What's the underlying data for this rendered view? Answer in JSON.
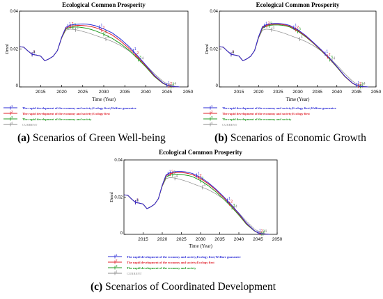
{
  "colors": {
    "series": [
      "#2b2bd6",
      "#e0202a",
      "#1f9a1f",
      "#8a8a8a"
    ],
    "axis": "#000000",
    "grid": "#000000"
  },
  "captions": [
    {
      "letter": "(a)",
      "text": " Scenarios of Green Well-being"
    },
    {
      "letter": "(b)",
      "text": " Scenarios of Economic Growth"
    },
    {
      "letter": "(c)",
      "text": " Scenarios of Coordinated Development"
    }
  ],
  "chart_data": [
    {
      "type": "line",
      "title": "Ecological Common Prosperity",
      "xlabel": "Time (Year)",
      "ylabel": "Dmnl",
      "xlim": [
        2010,
        2050
      ],
      "ylim": [
        0,
        0.04
      ],
      "xticks": [
        "2015",
        "2020",
        "2025",
        "2030",
        "2035",
        "2040",
        "2045",
        "2050"
      ],
      "yticks": [
        "0",
        "0.02",
        "0.04"
      ],
      "series": [
        {
          "name": "The rapid development of the economy and society;Ecology first;Welfare guarantee",
          "marker": "1",
          "x": [
            2010,
            2011,
            2012,
            2013,
            2014,
            2015,
            2016,
            2017,
            2018,
            2019,
            2020,
            2021,
            2022,
            2023,
            2024,
            2025,
            2026,
            2027,
            2028,
            2030,
            2032,
            2034,
            2036,
            2038,
            2040,
            2042,
            2044,
            2045,
            2046,
            2047,
            2048
          ],
          "y": [
            0.0212,
            0.021,
            0.019,
            0.0172,
            0.0168,
            0.0163,
            0.0138,
            0.0148,
            0.0162,
            0.0192,
            0.0262,
            0.0315,
            0.0326,
            0.0329,
            0.0331,
            0.0332,
            0.0331,
            0.0328,
            0.0323,
            0.0306,
            0.0285,
            0.0252,
            0.0213,
            0.0165,
            0.0115,
            0.0062,
            0.0022,
            0.001,
            0.0004,
            0.0001,
            0.0
          ]
        },
        {
          "name": "The rapid development of the economy and society;Ecology first",
          "marker": "2",
          "x": [
            2010,
            2011,
            2012,
            2013,
            2014,
            2015,
            2016,
            2017,
            2018,
            2019,
            2020,
            2021,
            2022,
            2023,
            2024,
            2025,
            2026,
            2027,
            2028,
            2030,
            2032,
            2034,
            2036,
            2038,
            2040,
            2042,
            2044,
            2045,
            2046,
            2047,
            2048
          ],
          "y": [
            0.0212,
            0.021,
            0.019,
            0.0172,
            0.0168,
            0.0163,
            0.0138,
            0.0148,
            0.0162,
            0.0192,
            0.026,
            0.031,
            0.032,
            0.0323,
            0.0325,
            0.0324,
            0.0322,
            0.0318,
            0.0313,
            0.0296,
            0.0274,
            0.0242,
            0.0203,
            0.0158,
            0.011,
            0.0058,
            0.002,
            0.0009,
            0.0003,
            0.0001,
            0.0
          ]
        },
        {
          "name": "The rapid development of the economy and society",
          "marker": "3",
          "x": [
            2010,
            2011,
            2012,
            2013,
            2014,
            2015,
            2016,
            2017,
            2018,
            2019,
            2020,
            2021,
            2022,
            2023,
            2024,
            2025,
            2026,
            2027,
            2028,
            2030,
            2032,
            2034,
            2036,
            2038,
            2040,
            2042,
            2044,
            2045,
            2046,
            2047,
            2048
          ],
          "y": [
            0.0212,
            0.021,
            0.019,
            0.0172,
            0.0168,
            0.0163,
            0.0138,
            0.0148,
            0.0162,
            0.0192,
            0.0258,
            0.0305,
            0.0314,
            0.0316,
            0.0316,
            0.0313,
            0.0309,
            0.0303,
            0.0296,
            0.0278,
            0.0256,
            0.0228,
            0.0193,
            0.015,
            0.0105,
            0.0055,
            0.0019,
            0.0008,
            0.0003,
            0.0001,
            0.0
          ]
        },
        {
          "name": "CURRENT",
          "marker": "4",
          "x": [
            2010,
            2011,
            2012,
            2013,
            2014,
            2015,
            2016,
            2017,
            2018,
            2019,
            2020,
            2021,
            2022,
            2023,
            2024,
            2025,
            2026,
            2027,
            2028,
            2030,
            2032,
            2034,
            2036,
            2038,
            2040,
            2042,
            2044,
            2045,
            2046,
            2047,
            2048
          ],
          "y": [
            0.0212,
            0.021,
            0.019,
            0.0172,
            0.0168,
            0.0163,
            0.0138,
            0.0148,
            0.0162,
            0.0192,
            0.0258,
            0.03,
            0.0305,
            0.0303,
            0.0299,
            0.0293,
            0.0287,
            0.028,
            0.0272,
            0.0257,
            0.024,
            0.0218,
            0.019,
            0.0155,
            0.0115,
            0.007,
            0.003,
            0.0017,
            0.0008,
            0.0003,
            0.0
          ]
        }
      ]
    },
    {
      "type": "line",
      "title": "Ecological Common Prosperity",
      "xlabel": "Time (Year)",
      "ylabel": "Dmnl",
      "xlim": [
        2010,
        2050
      ],
      "ylim": [
        0,
        0.04
      ],
      "xticks": [
        "2015",
        "2020",
        "2025",
        "2030",
        "2035",
        "2040",
        "2045",
        "2050"
      ],
      "yticks": [
        "0",
        "0.02",
        "0.04"
      ],
      "series": [
        {
          "name": "The rapid development of the economy and society;Ecology first;Welfare guarantee",
          "marker": "1",
          "x": [
            2010,
            2011,
            2012,
            2013,
            2014,
            2015,
            2016,
            2017,
            2018,
            2019,
            2020,
            2021,
            2022,
            2023,
            2024,
            2025,
            2026,
            2027,
            2028,
            2030,
            2032,
            2034,
            2036,
            2038,
            2040,
            2042,
            2044,
            2045,
            2046,
            2047,
            2048
          ],
          "y": [
            0.0212,
            0.021,
            0.019,
            0.0172,
            0.0168,
            0.0163,
            0.0138,
            0.0148,
            0.0162,
            0.0192,
            0.0265,
            0.0318,
            0.0328,
            0.0333,
            0.0335,
            0.0335,
            0.0333,
            0.033,
            0.0324,
            0.0302,
            0.0272,
            0.0235,
            0.0196,
            0.0155,
            0.0108,
            0.0058,
            0.002,
            0.0009,
            0.0003,
            0.0001,
            0.0
          ]
        },
        {
          "name": "The rapid development of the economy and society;Ecology first",
          "marker": "2",
          "x": [
            2010,
            2011,
            2012,
            2013,
            2014,
            2015,
            2016,
            2017,
            2018,
            2019,
            2020,
            2021,
            2022,
            2023,
            2024,
            2025,
            2026,
            2027,
            2028,
            2030,
            2032,
            2034,
            2036,
            2038,
            2040,
            2042,
            2044,
            2045,
            2046,
            2047,
            2048
          ],
          "y": [
            0.0212,
            0.021,
            0.019,
            0.0172,
            0.0168,
            0.0163,
            0.0138,
            0.0148,
            0.0162,
            0.0192,
            0.0262,
            0.0314,
            0.0324,
            0.0329,
            0.0331,
            0.0331,
            0.0329,
            0.0326,
            0.032,
            0.0298,
            0.0268,
            0.0232,
            0.0193,
            0.0152,
            0.0106,
            0.0056,
            0.0019,
            0.0008,
            0.0003,
            0.0001,
            0.0
          ]
        },
        {
          "name": "The rapid development of the economy and society",
          "marker": "3",
          "x": [
            2010,
            2011,
            2012,
            2013,
            2014,
            2015,
            2016,
            2017,
            2018,
            2019,
            2020,
            2021,
            2022,
            2023,
            2024,
            2025,
            2026,
            2027,
            2028,
            2030,
            2032,
            2034,
            2036,
            2038,
            2040,
            2042,
            2044,
            2045,
            2046,
            2047,
            2048
          ],
          "y": [
            0.0212,
            0.021,
            0.019,
            0.0172,
            0.0168,
            0.0163,
            0.0138,
            0.0148,
            0.0162,
            0.0192,
            0.026,
            0.031,
            0.032,
            0.0325,
            0.0327,
            0.0327,
            0.0325,
            0.0322,
            0.0316,
            0.0294,
            0.0265,
            0.023,
            0.0191,
            0.015,
            0.0104,
            0.0055,
            0.0019,
            0.0008,
            0.0003,
            0.0001,
            0.0
          ]
        },
        {
          "name": "CURRENT",
          "marker": "4",
          "x": [
            2010,
            2011,
            2012,
            2013,
            2014,
            2015,
            2016,
            2017,
            2018,
            2019,
            2020,
            2021,
            2022,
            2023,
            2024,
            2025,
            2026,
            2027,
            2028,
            2030,
            2032,
            2034,
            2036,
            2038,
            2040,
            2042,
            2044,
            2045,
            2046,
            2047,
            2048
          ],
          "y": [
            0.0212,
            0.021,
            0.019,
            0.0172,
            0.0168,
            0.0163,
            0.0138,
            0.0148,
            0.0162,
            0.0192,
            0.0258,
            0.03,
            0.0305,
            0.0303,
            0.0299,
            0.0293,
            0.0287,
            0.028,
            0.0272,
            0.0257,
            0.024,
            0.0218,
            0.019,
            0.0155,
            0.0115,
            0.007,
            0.003,
            0.0017,
            0.0008,
            0.0003,
            0.0
          ]
        }
      ]
    },
    {
      "type": "line",
      "title": "Ecological Common Prosperity",
      "xlabel": "Time (Year)",
      "ylabel": "Dmnl",
      "xlim": [
        2010,
        2050
      ],
      "ylim": [
        0,
        0.04
      ],
      "xticks": [
        "2015",
        "2020",
        "2025",
        "2030",
        "2035",
        "2040",
        "2045",
        "2050"
      ],
      "yticks": [
        "0",
        "0.02",
        "0.04"
      ],
      "series": [
        {
          "name": "The rapid development of the economy and society;Ecology first;Welfare guarantee",
          "marker": "1",
          "x": [
            2010,
            2011,
            2012,
            2013,
            2014,
            2015,
            2016,
            2017,
            2018,
            2019,
            2020,
            2021,
            2022,
            2023,
            2024,
            2025,
            2026,
            2027,
            2028,
            2030,
            2032,
            2034,
            2036,
            2038,
            2040,
            2042,
            2044,
            2045,
            2046,
            2047,
            2048
          ],
          "y": [
            0.0212,
            0.021,
            0.019,
            0.0172,
            0.0168,
            0.0163,
            0.0138,
            0.0148,
            0.0162,
            0.0192,
            0.0265,
            0.032,
            0.0331,
            0.0336,
            0.0338,
            0.0338,
            0.0336,
            0.0332,
            0.0326,
            0.0306,
            0.0278,
            0.0243,
            0.0203,
            0.016,
            0.0112,
            0.006,
            0.0021,
            0.0009,
            0.0003,
            0.0001,
            0.0
          ]
        },
        {
          "name": "The rapid development of the economy and society;Ecology first",
          "marker": "2",
          "x": [
            2010,
            2011,
            2012,
            2013,
            2014,
            2015,
            2016,
            2017,
            2018,
            2019,
            2020,
            2021,
            2022,
            2023,
            2024,
            2025,
            2026,
            2027,
            2028,
            2030,
            2032,
            2034,
            2036,
            2038,
            2040,
            2042,
            2044,
            2045,
            2046,
            2047,
            2048
          ],
          "y": [
            0.0212,
            0.021,
            0.019,
            0.0172,
            0.0168,
            0.0163,
            0.0138,
            0.0148,
            0.0162,
            0.0192,
            0.0262,
            0.0315,
            0.0325,
            0.033,
            0.0332,
            0.0332,
            0.033,
            0.0326,
            0.032,
            0.03,
            0.0272,
            0.0238,
            0.0198,
            0.0156,
            0.0108,
            0.0057,
            0.002,
            0.0008,
            0.0003,
            0.0001,
            0.0
          ]
        },
        {
          "name": "The rapid development of the economy and society",
          "marker": "3",
          "x": [
            2010,
            2011,
            2012,
            2013,
            2014,
            2015,
            2016,
            2017,
            2018,
            2019,
            2020,
            2021,
            2022,
            2023,
            2024,
            2025,
            2026,
            2027,
            2028,
            2030,
            2032,
            2034,
            2036,
            2038,
            2040,
            2042,
            2044,
            2045,
            2046,
            2047,
            2048
          ],
          "y": [
            0.0212,
            0.021,
            0.019,
            0.0172,
            0.0168,
            0.0163,
            0.0138,
            0.0148,
            0.0162,
            0.0192,
            0.026,
            0.0308,
            0.0318,
            0.0322,
            0.0323,
            0.0322,
            0.0319,
            0.0315,
            0.0309,
            0.0289,
            0.0262,
            0.0229,
            0.019,
            0.0149,
            0.0103,
            0.0054,
            0.0019,
            0.0008,
            0.0003,
            0.0001,
            0.0
          ]
        },
        {
          "name": "CURRENT",
          "marker": "4",
          "x": [
            2010,
            2011,
            2012,
            2013,
            2014,
            2015,
            2016,
            2017,
            2018,
            2019,
            2020,
            2021,
            2022,
            2023,
            2024,
            2025,
            2026,
            2027,
            2028,
            2030,
            2032,
            2034,
            2036,
            2038,
            2040,
            2042,
            2044,
            2045,
            2046,
            2047,
            2048
          ],
          "y": [
            0.0212,
            0.021,
            0.019,
            0.0172,
            0.0168,
            0.0163,
            0.0138,
            0.0148,
            0.0162,
            0.0192,
            0.0258,
            0.03,
            0.0305,
            0.0303,
            0.0299,
            0.0293,
            0.0287,
            0.028,
            0.0272,
            0.0257,
            0.024,
            0.0218,
            0.019,
            0.0155,
            0.0115,
            0.007,
            0.003,
            0.0017,
            0.0008,
            0.0003,
            0.0
          ]
        }
      ]
    }
  ]
}
